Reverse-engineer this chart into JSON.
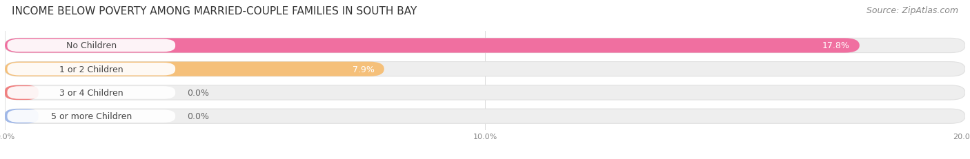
{
  "title": "INCOME BELOW POVERTY AMONG MARRIED-COUPLE FAMILIES IN SOUTH BAY",
  "source": "Source: ZipAtlas.com",
  "categories": [
    "No Children",
    "1 or 2 Children",
    "3 or 4 Children",
    "5 or more Children"
  ],
  "values": [
    17.8,
    7.9,
    0.0,
    0.0
  ],
  "bar_colors": [
    "#f06fa0",
    "#f5c07a",
    "#f08080",
    "#a0b8e8"
  ],
  "track_color": "#eeeeee",
  "track_edge_color": "#e0e0e0",
  "xlim": [
    0,
    20.0
  ],
  "xticks": [
    0.0,
    10.0,
    20.0
  ],
  "xticklabels": [
    "0.0%",
    "10.0%",
    "20.0%"
  ],
  "title_fontsize": 11,
  "source_fontsize": 9,
  "label_fontsize": 9,
  "value_fontsize": 9,
  "bar_height": 0.62,
  "background_color": "#ffffff",
  "label_bg_color": "#ffffff",
  "label_text_color": "#444444",
  "value_text_color_inside": "#ffffff",
  "value_text_color_outside": "#666666",
  "grid_color": "#dddddd",
  "axis_text_color": "#888888"
}
